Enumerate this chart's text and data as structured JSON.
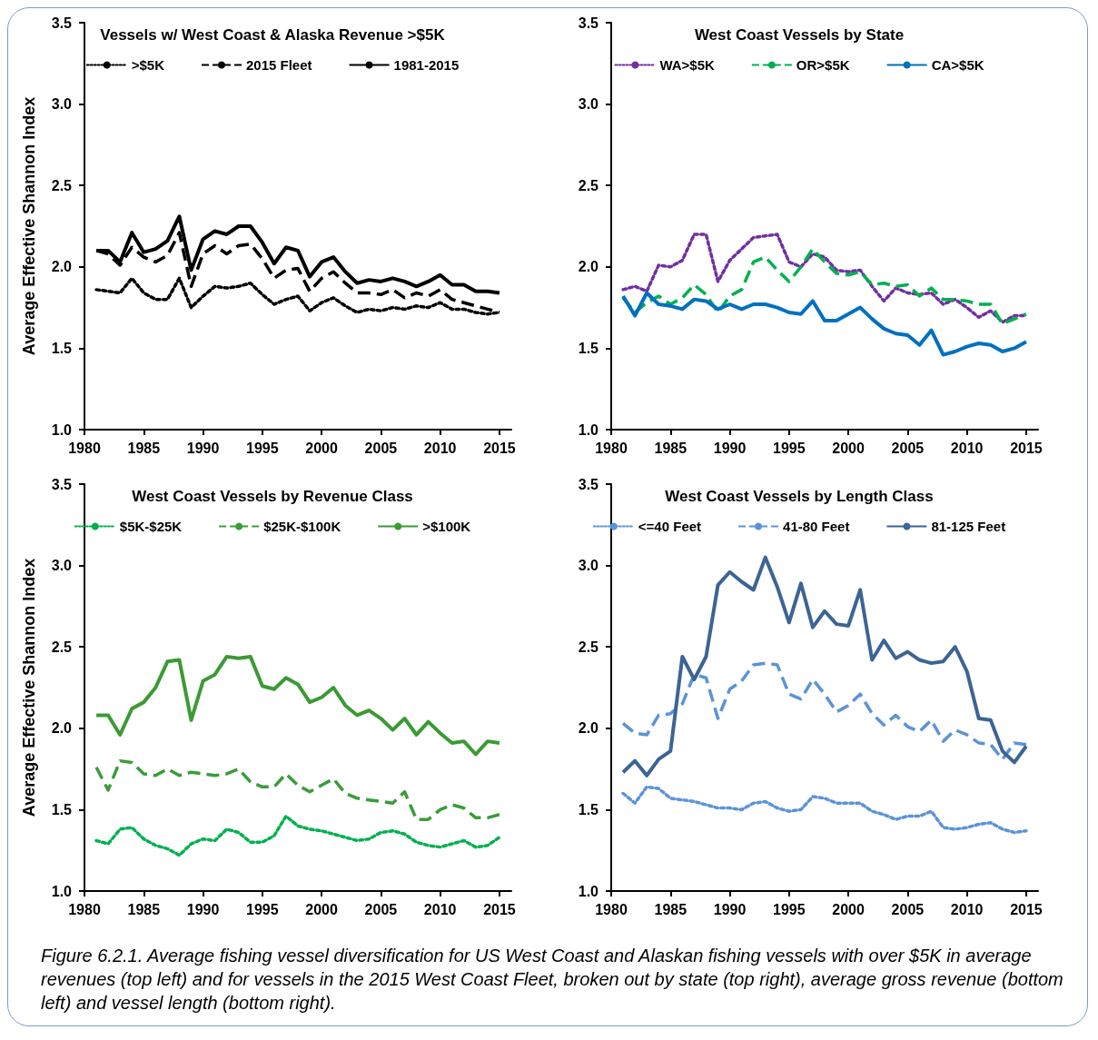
{
  "chart_data": [
    {
      "type": "line",
      "title": "Vessels w/ West Coast & Alaska Revenue >$5K",
      "ylabel": "Average Effective Shannon Index",
      "x": [
        1981,
        1982,
        1983,
        1984,
        1985,
        1986,
        1987,
        1988,
        1989,
        1990,
        1991,
        1992,
        1993,
        1994,
        1995,
        1996,
        1997,
        1998,
        1999,
        2000,
        2001,
        2002,
        2003,
        2004,
        2005,
        2006,
        2007,
        2008,
        2009,
        2010,
        2011,
        2012,
        2013,
        2014,
        2015
      ],
      "xlim": [
        1980,
        2016
      ],
      "xticks": [
        1980,
        1985,
        1990,
        1995,
        2000,
        2005,
        2010,
        2015
      ],
      "ylim": [
        1,
        3.5
      ],
      "yticks": [
        {
          "value": 1,
          "label": "1.0"
        },
        {
          "value": 1.5,
          "label": "1.5"
        },
        {
          "value": 2,
          "label": "2.0"
        },
        {
          "value": 2.5,
          "label": "2.5"
        },
        {
          "value": 3,
          "label": "3.0"
        },
        {
          "value": 3.5,
          "label": "3.5"
        }
      ],
      "grid": false,
      "legend": "top",
      "marker": "none",
      "series": [
        {
          "name": ">$5K",
          "color": "#000000",
          "line_style": "dotted",
          "values": [
            1.86,
            1.85,
            1.84,
            1.93,
            1.84,
            1.8,
            1.8,
            1.93,
            1.75,
            1.82,
            1.88,
            1.87,
            1.88,
            1.9,
            1.83,
            1.77,
            1.8,
            1.82,
            1.73,
            1.78,
            1.81,
            1.76,
            1.72,
            1.74,
            1.73,
            1.75,
            1.74,
            1.76,
            1.75,
            1.78,
            1.74,
            1.74,
            1.72,
            1.71,
            1.72
          ]
        },
        {
          "name": "2015 Fleet",
          "color": "#000000",
          "line_style": "dashed",
          "values": [
            2.1,
            2.08,
            2.01,
            2.12,
            2.06,
            2.03,
            2.07,
            2.21,
            1.88,
            2.08,
            2.13,
            2.08,
            2.13,
            2.14,
            2.05,
            1.93,
            1.98,
            1.99,
            1.85,
            1.93,
            1.97,
            1.9,
            1.84,
            1.84,
            1.83,
            1.86,
            1.81,
            1.84,
            1.82,
            1.86,
            1.8,
            1.78,
            1.76,
            1.74,
            1.72
          ]
        },
        {
          "name": "1981-2015",
          "color": "#000000",
          "line_style": "solid",
          "values": [
            2.1,
            2.1,
            2.03,
            2.21,
            2.09,
            2.11,
            2.16,
            2.31,
            1.98,
            2.17,
            2.22,
            2.2,
            2.25,
            2.25,
            2.15,
            2.02,
            2.12,
            2.1,
            1.94,
            2.03,
            2.06,
            1.97,
            1.9,
            1.92,
            1.91,
            1.93,
            1.91,
            1.88,
            1.91,
            1.95,
            1.89,
            1.89,
            1.85,
            1.85,
            1.84
          ]
        }
      ]
    },
    {
      "type": "line",
      "title": "West Coast Vessels by State",
      "x": [
        1981,
        1982,
        1983,
        1984,
        1985,
        1986,
        1987,
        1988,
        1989,
        1990,
        1991,
        1992,
        1993,
        1994,
        1995,
        1996,
        1997,
        1998,
        1999,
        2000,
        2001,
        2002,
        2003,
        2004,
        2005,
        2006,
        2007,
        2008,
        2009,
        2010,
        2011,
        2012,
        2013,
        2014,
        2015
      ],
      "xlim": [
        1980,
        2016
      ],
      "xticks": [
        1980,
        1985,
        1990,
        1995,
        2000,
        2005,
        2010,
        2015
      ],
      "ylim": [
        1,
        3.5
      ],
      "yticks": [
        {
          "value": 1,
          "label": "1.0"
        },
        {
          "value": 1.5,
          "label": "1.5"
        },
        {
          "value": 2,
          "label": "2.0"
        },
        {
          "value": 2.5,
          "label": "2.5"
        },
        {
          "value": 3,
          "label": "3.0"
        },
        {
          "value": 3.5,
          "label": "3.5"
        }
      ],
      "grid": false,
      "legend": "top",
      "marker": "none",
      "series": [
        {
          "name": "WA>$5K",
          "color": "#7030a0",
          "line_style": "dotted",
          "values": [
            1.86,
            1.88,
            1.85,
            2.01,
            2.0,
            2.04,
            2.2,
            2.2,
            1.91,
            2.04,
            2.11,
            2.18,
            2.19,
            2.2,
            2.03,
            2.0,
            2.08,
            2.06,
            1.98,
            1.97,
            1.98,
            1.88,
            1.79,
            1.87,
            1.84,
            1.83,
            1.84,
            1.77,
            1.8,
            1.75,
            1.69,
            1.73,
            1.66,
            1.7,
            1.7
          ]
        },
        {
          "name": "OR>$5K",
          "color": "#00b050",
          "line_style": "dashed",
          "values": [
            1.81,
            1.72,
            1.78,
            1.82,
            1.77,
            1.81,
            1.89,
            1.83,
            1.72,
            1.82,
            1.86,
            2.03,
            2.06,
            1.98,
            1.91,
            2.0,
            2.11,
            2.03,
            1.96,
            1.95,
            1.97,
            1.89,
            1.9,
            1.88,
            1.89,
            1.82,
            1.87,
            1.8,
            1.8,
            1.79,
            1.77,
            1.77,
            1.65,
            1.68,
            1.71
          ]
        },
        {
          "name": "CA>$5K",
          "color": "#0070c0",
          "line_style": "solid",
          "values": [
            1.82,
            1.7,
            1.84,
            1.77,
            1.76,
            1.74,
            1.8,
            1.79,
            1.74,
            1.77,
            1.74,
            1.77,
            1.77,
            1.75,
            1.72,
            1.71,
            1.79,
            1.67,
            1.67,
            1.71,
            1.75,
            1.68,
            1.62,
            1.59,
            1.58,
            1.52,
            1.61,
            1.46,
            1.48,
            1.51,
            1.53,
            1.52,
            1.48,
            1.5,
            1.54
          ]
        }
      ]
    },
    {
      "type": "line",
      "title": "West Coast Vessels by Revenue Class",
      "ylabel": "Average Effective Shannon Index",
      "x": [
        1981,
        1982,
        1983,
        1984,
        1985,
        1986,
        1987,
        1988,
        1989,
        1990,
        1991,
        1992,
        1993,
        1994,
        1995,
        1996,
        1997,
        1998,
        1999,
        2000,
        2001,
        2002,
        2003,
        2004,
        2005,
        2006,
        2007,
        2008,
        2009,
        2010,
        2011,
        2012,
        2013,
        2014,
        2015
      ],
      "xlim": [
        1980,
        2016
      ],
      "xticks": [
        1980,
        1985,
        1990,
        1995,
        2000,
        2005,
        2010,
        2015
      ],
      "ylim": [
        1,
        3.5
      ],
      "yticks": [
        {
          "value": 1,
          "label": "1.0"
        },
        {
          "value": 1.5,
          "label": "1.5"
        },
        {
          "value": 2,
          "label": "2.0"
        },
        {
          "value": 2.5,
          "label": "2.5"
        },
        {
          "value": 3,
          "label": "3.0"
        },
        {
          "value": 3.5,
          "label": "3.5"
        }
      ],
      "grid": false,
      "legend": "top",
      "marker": "none",
      "series": [
        {
          "name": "$5K-$25K",
          "color": "#00b050",
          "line_style": "dotted",
          "values": [
            1.31,
            1.29,
            1.38,
            1.39,
            1.32,
            1.28,
            1.26,
            1.22,
            1.29,
            1.32,
            1.31,
            1.38,
            1.36,
            1.3,
            1.3,
            1.34,
            1.46,
            1.4,
            1.38,
            1.37,
            1.35,
            1.33,
            1.31,
            1.32,
            1.36,
            1.37,
            1.35,
            1.3,
            1.28,
            1.27,
            1.29,
            1.31,
            1.27,
            1.28,
            1.33
          ]
        },
        {
          "name": "$25K-$100K",
          "color": "#3a9c3a",
          "line_style": "dashed",
          "values": [
            1.76,
            1.62,
            1.8,
            1.79,
            1.72,
            1.71,
            1.75,
            1.71,
            1.73,
            1.72,
            1.71,
            1.72,
            1.75,
            1.67,
            1.64,
            1.64,
            1.72,
            1.65,
            1.61,
            1.65,
            1.69,
            1.6,
            1.57,
            1.56,
            1.55,
            1.54,
            1.61,
            1.44,
            1.44,
            1.5,
            1.53,
            1.51,
            1.45,
            1.45,
            1.47
          ]
        },
        {
          "name": ">$100K",
          "color": "#3c9a34",
          "line_style": "solid",
          "values": [
            2.08,
            2.08,
            1.96,
            2.12,
            2.16,
            2.25,
            2.41,
            2.42,
            2.05,
            2.29,
            2.33,
            2.44,
            2.43,
            2.44,
            2.26,
            2.24,
            2.31,
            2.27,
            2.16,
            2.19,
            2.25,
            2.14,
            2.08,
            2.11,
            2.06,
            1.99,
            2.06,
            1.96,
            2.04,
            1.97,
            1.91,
            1.92,
            1.84,
            1.92,
            1.91
          ]
        }
      ]
    },
    {
      "type": "line",
      "title": "West Coast Vessels by Length Class",
      "x": [
        1981,
        1982,
        1983,
        1984,
        1985,
        1986,
        1987,
        1988,
        1989,
        1990,
        1991,
        1992,
        1993,
        1994,
        1995,
        1996,
        1997,
        1998,
        1999,
        2000,
        2001,
        2002,
        2003,
        2004,
        2005,
        2006,
        2007,
        2008,
        2009,
        2010,
        2011,
        2012,
        2013,
        2014,
        2015
      ],
      "xlim": [
        1980,
        2016
      ],
      "xticks": [
        1980,
        1985,
        1990,
        1995,
        2000,
        2005,
        2010,
        2015
      ],
      "ylim": [
        1,
        3.5
      ],
      "yticks": [
        {
          "value": 1,
          "label": "1.0"
        },
        {
          "value": 1.5,
          "label": "1.5"
        },
        {
          "value": 2,
          "label": "2.0"
        },
        {
          "value": 2.5,
          "label": "2.5"
        },
        {
          "value": 3,
          "label": "3.0"
        },
        {
          "value": 3.5,
          "label": "3.5"
        }
      ],
      "grid": false,
      "legend": "top",
      "marker": "none",
      "annotations": [
        "Figure 6.2.1. Average fishing vessel diversification for US West Coast and Alaskan fishing vessels with over $5K in average revenues (top left) and for vessels in the 2015 West Coast Fleet, broken out by state (top right), average gross revenue (bottom left) and vessel length (bottom right)."
      ],
      "series": [
        {
          "name": "<=40 Feet",
          "color": "#5b93d8",
          "line_style": "dotted",
          "values": [
            1.6,
            1.54,
            1.64,
            1.63,
            1.57,
            1.56,
            1.55,
            1.53,
            1.51,
            1.51,
            1.5,
            1.54,
            1.55,
            1.51,
            1.49,
            1.5,
            1.58,
            1.57,
            1.54,
            1.54,
            1.54,
            1.49,
            1.47,
            1.44,
            1.46,
            1.46,
            1.49,
            1.39,
            1.38,
            1.39,
            1.41,
            1.42,
            1.38,
            1.36,
            1.37
          ]
        },
        {
          "name": "41-80 Feet",
          "color": "#5b93d8",
          "line_style": "dashed",
          "values": [
            2.03,
            1.97,
            1.96,
            2.08,
            2.09,
            2.15,
            2.33,
            2.31,
            2.06,
            2.24,
            2.29,
            2.39,
            2.4,
            2.39,
            2.21,
            2.18,
            2.3,
            2.21,
            2.1,
            2.14,
            2.21,
            2.09,
            2.02,
            2.08,
            2.01,
            1.98,
            2.05,
            1.92,
            1.99,
            1.96,
            1.91,
            1.9,
            1.81,
            1.91,
            1.9
          ]
        },
        {
          "name": "81-125 Feet",
          "color": "#3c6494",
          "line_style": "solid",
          "values": [
            1.73,
            1.8,
            1.71,
            1.81,
            1.86,
            2.44,
            2.3,
            2.44,
            2.88,
            2.96,
            2.9,
            2.85,
            3.05,
            2.87,
            2.65,
            2.89,
            2.62,
            2.72,
            2.64,
            2.63,
            2.85,
            2.42,
            2.54,
            2.43,
            2.47,
            2.42,
            2.4,
            2.41,
            2.5,
            2.35,
            2.06,
            2.05,
            1.86,
            1.79,
            1.89
          ]
        }
      ]
    }
  ]
}
